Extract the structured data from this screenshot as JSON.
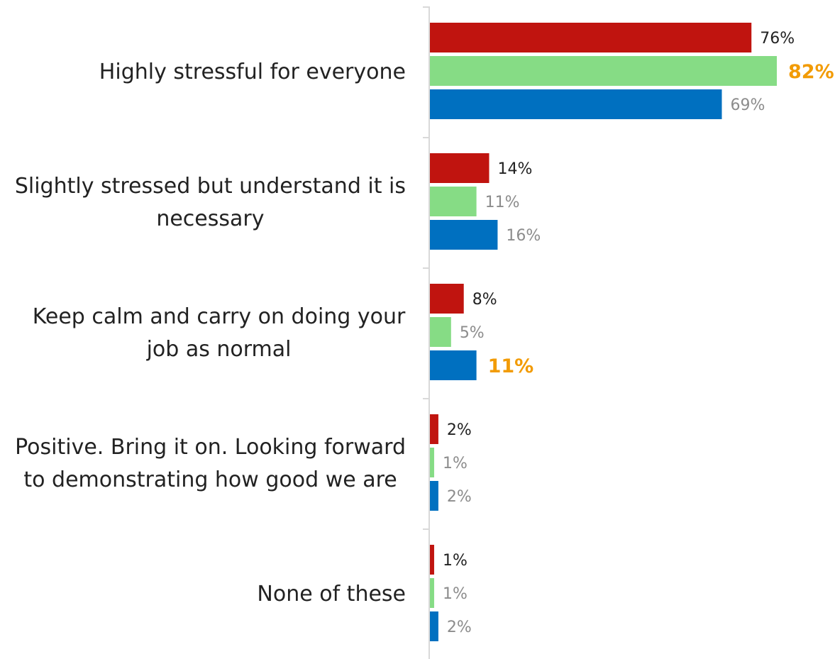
{
  "chart_data": {
    "type": "bar",
    "orientation": "horizontal",
    "categories": [
      "Highly stressful for everyone",
      "Slightly stressed but understand it is necessary",
      "Keep calm and carry on doing your job as normal",
      "Positive. Bring it on. Looking forward to demonstrating how good we are",
      "None of these"
    ],
    "series": [
      {
        "color": "#c0140f",
        "label_color": "#222222",
        "values": [
          76,
          14,
          8,
          2,
          1
        ],
        "labels": [
          "76%",
          "14%",
          "8%",
          "2%",
          "1%"
        ]
      },
      {
        "color": "#86dc85",
        "label_color": "#8c8c8c",
        "values": [
          82,
          11,
          5,
          1,
          1
        ],
        "labels": [
          "82%",
          "11%",
          "5%",
          "1%",
          "1%"
        ]
      },
      {
        "color": "#0070c0",
        "label_color": "#8c8c8c",
        "values": [
          69,
          16,
          11,
          2,
          2
        ],
        "labels": [
          "69%",
          "16%",
          "11%",
          "2%",
          "2%"
        ]
      }
    ],
    "highlights": [
      {
        "series": 1,
        "category": 0
      },
      {
        "series": 2,
        "category": 2
      }
    ],
    "highlight_color": "#f29b05",
    "xlim": [
      0,
      82
    ],
    "axis_color": "#d9d9d9",
    "grid": false,
    "legend": "none"
  }
}
